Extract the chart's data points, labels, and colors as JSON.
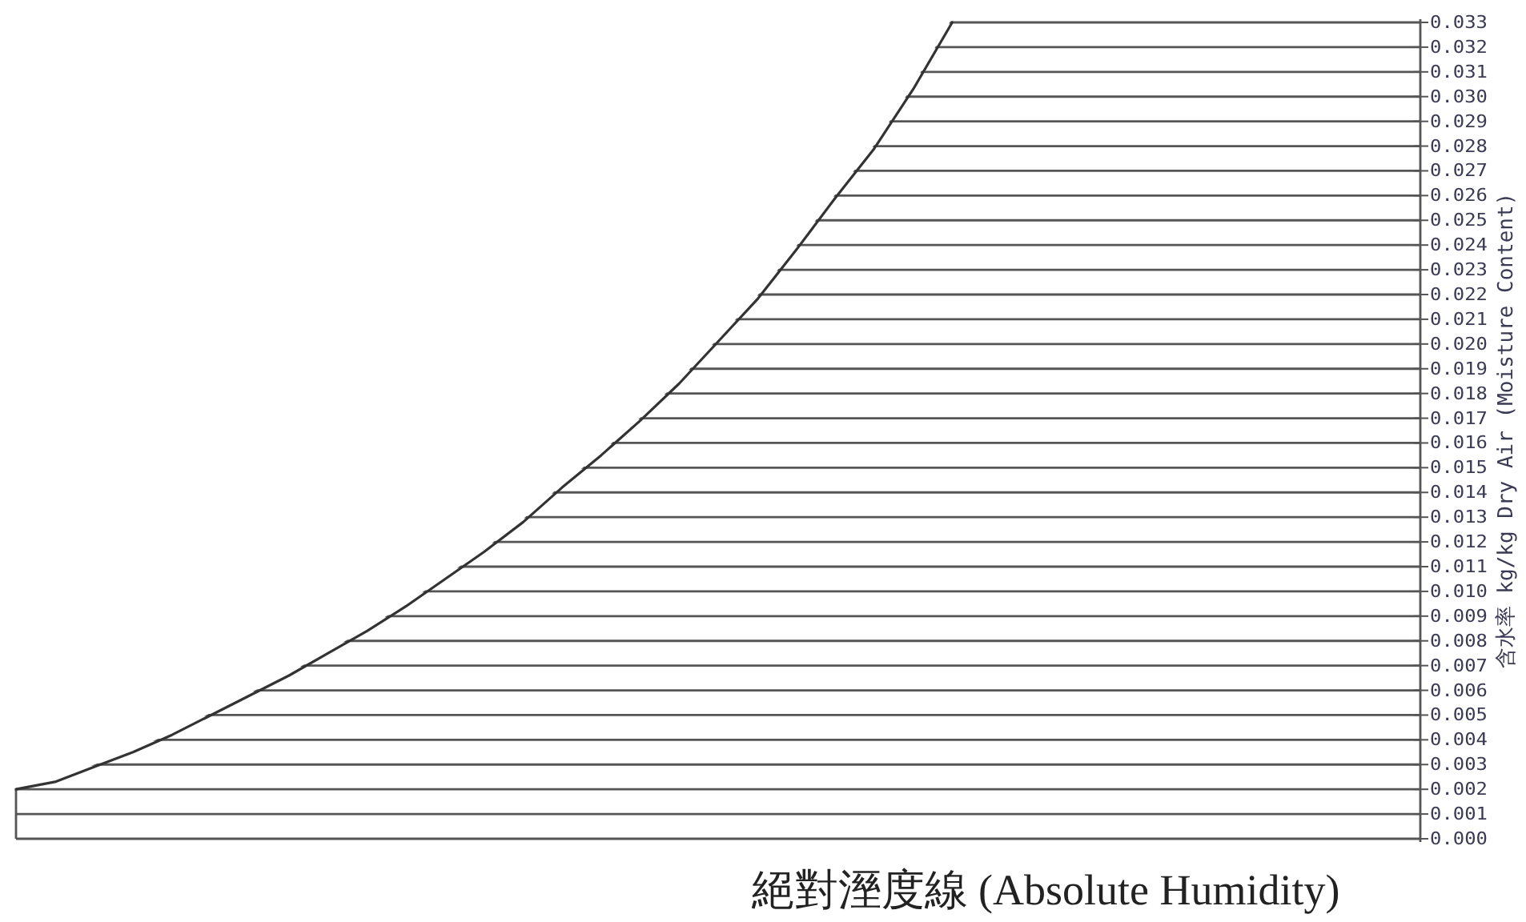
{
  "chart_data": {
    "type": "line",
    "xlabel": "絕對溼度線 (Absolute Humidity)",
    "ylabel": "含水率 kg/kg Dry Air (Moisture Content)",
    "categories": [
      null,
      null,
      null,
      null,
      null,
      null,
      null,
      null,
      null,
      null,
      null,
      null,
      null,
      null,
      null,
      null,
      null,
      null,
      null,
      null,
      null,
      null,
      null,
      null,
      null,
      null,
      null,
      null,
      null,
      null,
      null,
      null,
      null,
      null,
      null,
      null,
      null
    ],
    "series": [
      {
        "color": "#333333",
        "values": [
          0.002,
          0.0023,
          0.0029,
          0.0035,
          0.0042,
          0.005,
          0.0058,
          0.0066,
          0.0075,
          0.0084,
          0.0094,
          0.0105,
          0.0116,
          0.0128,
          0.0142,
          0.0155,
          0.0169,
          0.0184,
          0.0201,
          0.0218,
          0.0238,
          0.0259,
          0.0279,
          0.0303,
          0.033,
          null,
          null,
          null,
          null,
          null,
          null,
          null,
          null,
          null,
          null,
          null,
          null
        ]
      }
    ],
    "ylim": [
      0,
      0.033
    ],
    "yticks": [
      {
        "value": 0,
        "label": "0.000"
      },
      {
        "value": 0.001,
        "label": "0.001"
      },
      {
        "value": 0.002,
        "label": "0.002"
      },
      {
        "value": 0.003,
        "label": "0.003"
      },
      {
        "value": 0.004,
        "label": "0.004"
      },
      {
        "value": 0.005,
        "label": "0.005"
      },
      {
        "value": 0.006,
        "label": "0.006"
      },
      {
        "value": 0.007,
        "label": "0.007"
      },
      {
        "value": 0.008,
        "label": "0.008"
      },
      {
        "value": 0.009,
        "label": "0.009"
      },
      {
        "value": 0.01,
        "label": "0.010"
      },
      {
        "value": 0.011,
        "label": "0.011"
      },
      {
        "value": 0.012,
        "label": "0.012"
      },
      {
        "value": 0.013,
        "label": "0.013"
      },
      {
        "value": 0.014,
        "label": "0.014"
      },
      {
        "value": 0.015,
        "label": "0.015"
      },
      {
        "value": 0.016,
        "label": "0.016"
      },
      {
        "value": 0.017,
        "label": "0.017"
      },
      {
        "value": 0.018,
        "label": "0.018"
      },
      {
        "value": 0.019,
        "label": "0.019"
      },
      {
        "value": 0.02,
        "label": "0.020"
      },
      {
        "value": 0.021,
        "label": "0.021"
      },
      {
        "value": 0.022,
        "label": "0.022"
      },
      {
        "value": 0.023,
        "label": "0.023"
      },
      {
        "value": 0.024,
        "label": "0.024"
      },
      {
        "value": 0.025,
        "label": "0.025"
      },
      {
        "value": 0.026,
        "label": "0.026"
      },
      {
        "value": 0.027,
        "label": "0.027"
      },
      {
        "value": 0.028,
        "label": "0.028"
      },
      {
        "value": 0.029,
        "label": "0.029"
      },
      {
        "value": 0.03,
        "label": "0.030"
      },
      {
        "value": 0.031,
        "label": "0.031"
      },
      {
        "value": 0.032,
        "label": "0.032"
      },
      {
        "value": 0.033,
        "label": "0.033"
      }
    ],
    "grid": "y",
    "marker": "none",
    "line_style": "solid",
    "tick_labels": "y"
  }
}
